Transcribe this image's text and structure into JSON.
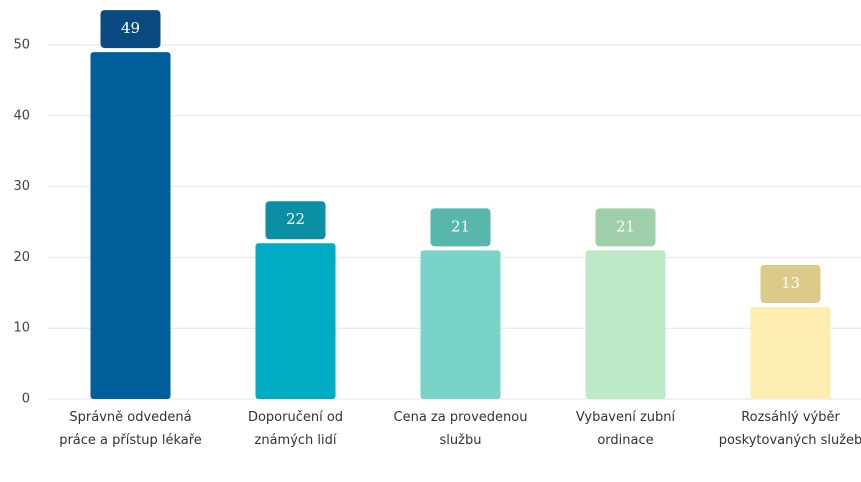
{
  "chart_data": {
    "type": "bar",
    "categories": [
      "Správně odvedená práce a přístup lékaře",
      "Doporučení od známých lidí",
      "Cena za provedenou službu",
      "Vybavení zubní ordinace",
      "Rozsáhlý výběr poskytovaných služeb"
    ],
    "values": [
      49,
      22,
      21,
      21,
      13
    ],
    "colors": [
      "#005f9a",
      "#00abc4",
      "#79d4c7",
      "#bde9c7",
      "#fdeeb0"
    ],
    "label_colors": [
      "#0b4a80",
      "#0a8fa5",
      "#57b7aa",
      "#9fcfa9",
      "#dccb88"
    ],
    "ylim": [
      0,
      50
    ],
    "yticks": [
      0,
      10,
      20,
      30,
      40,
      50
    ],
    "grid": true
  }
}
